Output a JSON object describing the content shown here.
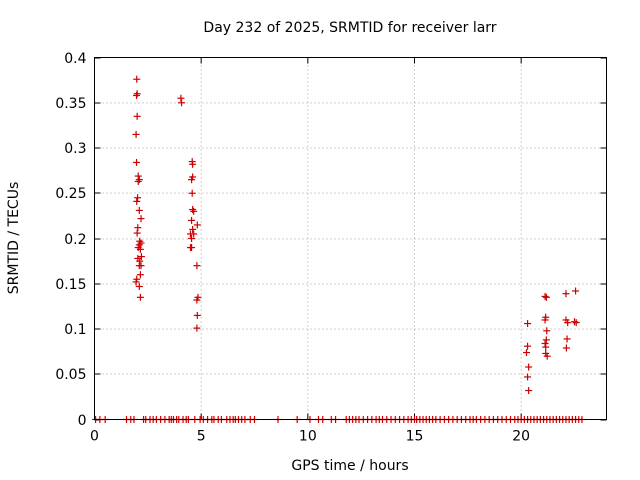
{
  "chart_data": {
    "type": "scatter",
    "title": "Day 232 of 2025, SRMTID for receiver larr",
    "xlabel": "GPS time / hours",
    "ylabel": "SRMTID / TECUs",
    "xlim": [
      0,
      24
    ],
    "ylim": [
      0,
      0.4
    ],
    "xticks": [
      0,
      5,
      10,
      15,
      20
    ],
    "yticks": [
      0,
      0.05,
      0.1,
      0.15,
      0.2,
      0.25,
      0.3,
      0.35,
      0.4
    ],
    "xtick_labels": [
      "0",
      "5",
      "10",
      "15",
      "20"
    ],
    "ytick_labels": [
      "0",
      "0.05",
      "0.1",
      "0.15",
      "0.2",
      "0.25",
      "0.3",
      "0.35",
      "0.4"
    ],
    "grid": true,
    "marker": "+",
    "color": "#cc0000",
    "series": [
      {
        "name": "SRMTID",
        "points": [
          [
            1.98,
            0.376
          ],
          [
            1.97,
            0.358
          ],
          [
            2.0,
            0.36
          ],
          [
            2.0,
            0.335
          ],
          [
            1.95,
            0.315
          ],
          [
            1.97,
            0.284
          ],
          [
            2.05,
            0.269
          ],
          [
            2.05,
            0.263
          ],
          [
            2.1,
            0.265
          ],
          [
            2.02,
            0.245
          ],
          [
            1.98,
            0.241
          ],
          [
            2.1,
            0.231
          ],
          [
            2.18,
            0.222
          ],
          [
            2.03,
            0.212
          ],
          [
            2.0,
            0.206
          ],
          [
            2.12,
            0.197
          ],
          [
            2.18,
            0.195
          ],
          [
            2.1,
            0.193
          ],
          [
            2.05,
            0.19
          ],
          [
            2.15,
            0.188
          ],
          [
            2.2,
            0.18
          ],
          [
            2.03,
            0.178
          ],
          [
            2.12,
            0.175
          ],
          [
            2.1,
            0.17
          ],
          [
            2.18,
            0.17
          ],
          [
            2.15,
            0.16
          ],
          [
            1.98,
            0.155
          ],
          [
            1.95,
            0.152
          ],
          [
            2.1,
            0.147
          ],
          [
            2.15,
            0.135
          ],
          [
            4.05,
            0.355
          ],
          [
            4.08,
            0.35
          ],
          [
            4.58,
            0.285
          ],
          [
            4.6,
            0.282
          ],
          [
            4.6,
            0.268
          ],
          [
            4.55,
            0.265
          ],
          [
            4.58,
            0.25
          ],
          [
            4.6,
            0.232
          ],
          [
            4.65,
            0.23
          ],
          [
            4.55,
            0.22
          ],
          [
            4.82,
            0.215
          ],
          [
            4.6,
            0.21
          ],
          [
            4.65,
            0.205
          ],
          [
            4.5,
            0.205
          ],
          [
            4.55,
            0.2
          ],
          [
            4.5,
            0.19
          ],
          [
            4.55,
            0.19
          ],
          [
            4.8,
            0.17
          ],
          [
            4.85,
            0.135
          ],
          [
            4.8,
            0.132
          ],
          [
            4.82,
            0.115
          ],
          [
            4.8,
            0.101
          ],
          [
            20.3,
            0.106
          ],
          [
            20.3,
            0.081
          ],
          [
            20.25,
            0.074
          ],
          [
            20.35,
            0.058
          ],
          [
            20.3,
            0.047
          ],
          [
            20.35,
            0.032
          ],
          [
            21.12,
            0.136
          ],
          [
            21.18,
            0.135
          ],
          [
            21.15,
            0.113
          ],
          [
            21.12,
            0.11
          ],
          [
            21.2,
            0.098
          ],
          [
            21.18,
            0.088
          ],
          [
            21.12,
            0.084
          ],
          [
            21.15,
            0.08
          ],
          [
            21.15,
            0.073
          ],
          [
            21.22,
            0.07
          ],
          [
            22.1,
            0.139
          ],
          [
            22.1,
            0.11
          ],
          [
            22.18,
            0.107
          ],
          [
            22.15,
            0.089
          ],
          [
            22.12,
            0.079
          ],
          [
            22.55,
            0.142
          ],
          [
            22.5,
            0.108
          ],
          [
            22.58,
            0.107
          ],
          [
            0.05,
            0
          ],
          [
            0.25,
            0
          ],
          [
            0.5,
            0
          ],
          [
            1.5,
            0
          ],
          [
            1.7,
            0
          ],
          [
            1.85,
            0
          ],
          [
            2.3,
            0
          ],
          [
            2.4,
            0
          ],
          [
            2.6,
            0
          ],
          [
            2.75,
            0
          ],
          [
            2.9,
            0
          ],
          [
            3.1,
            0
          ],
          [
            3.3,
            0
          ],
          [
            3.5,
            0
          ],
          [
            3.6,
            0
          ],
          [
            3.7,
            0
          ],
          [
            3.85,
            0
          ],
          [
            3.95,
            0
          ],
          [
            4.15,
            0
          ],
          [
            4.3,
            0
          ],
          [
            4.4,
            0
          ],
          [
            4.7,
            0
          ],
          [
            4.95,
            0
          ],
          [
            5.1,
            0
          ],
          [
            5.3,
            0
          ],
          [
            5.5,
            0
          ],
          [
            5.6,
            0
          ],
          [
            5.8,
            0
          ],
          [
            5.95,
            0
          ],
          [
            6.2,
            0
          ],
          [
            6.35,
            0
          ],
          [
            6.5,
            0
          ],
          [
            6.6,
            0
          ],
          [
            6.75,
            0
          ],
          [
            6.9,
            0
          ],
          [
            7.05,
            0
          ],
          [
            7.3,
            0
          ],
          [
            7.5,
            0
          ],
          [
            8.6,
            0
          ],
          [
            9.5,
            0
          ],
          [
            10.1,
            0
          ],
          [
            10.5,
            0
          ],
          [
            10.7,
            0
          ],
          [
            11.1,
            0
          ],
          [
            11.3,
            0
          ],
          [
            11.8,
            0
          ],
          [
            11.95,
            0
          ],
          [
            12.1,
            0
          ],
          [
            12.25,
            0
          ],
          [
            12.4,
            0
          ],
          [
            12.6,
            0
          ],
          [
            12.8,
            0
          ],
          [
            13.0,
            0
          ],
          [
            13.2,
            0
          ],
          [
            13.35,
            0
          ],
          [
            13.5,
            0
          ],
          [
            13.7,
            0
          ],
          [
            13.9,
            0
          ],
          [
            14.1,
            0
          ],
          [
            14.3,
            0
          ],
          [
            14.5,
            0
          ],
          [
            14.7,
            0
          ],
          [
            14.85,
            0
          ],
          [
            15.0,
            0
          ],
          [
            15.1,
            0
          ],
          [
            15.25,
            0
          ],
          [
            15.4,
            0
          ],
          [
            15.55,
            0
          ],
          [
            15.7,
            0
          ],
          [
            15.85,
            0
          ],
          [
            16.0,
            0
          ],
          [
            16.2,
            0
          ],
          [
            16.4,
            0
          ],
          [
            16.6,
            0
          ],
          [
            16.8,
            0
          ],
          [
            17.0,
            0
          ],
          [
            17.2,
            0
          ],
          [
            17.4,
            0
          ],
          [
            17.6,
            0
          ],
          [
            17.75,
            0
          ],
          [
            17.9,
            0
          ],
          [
            18.1,
            0
          ],
          [
            18.3,
            0
          ],
          [
            18.5,
            0
          ],
          [
            18.7,
            0
          ],
          [
            18.9,
            0
          ],
          [
            19.1,
            0
          ],
          [
            19.3,
            0
          ],
          [
            19.5,
            0
          ],
          [
            19.7,
            0
          ],
          [
            19.85,
            0
          ],
          [
            20.0,
            0
          ],
          [
            20.15,
            0
          ],
          [
            20.3,
            0
          ],
          [
            20.45,
            0
          ],
          [
            20.6,
            0
          ],
          [
            20.75,
            0
          ],
          [
            20.9,
            0
          ],
          [
            21.05,
            0
          ],
          [
            21.2,
            0
          ],
          [
            21.35,
            0
          ],
          [
            21.5,
            0
          ],
          [
            21.65,
            0
          ],
          [
            21.8,
            0
          ],
          [
            21.95,
            0
          ],
          [
            22.1,
            0
          ],
          [
            22.25,
            0
          ],
          [
            22.4,
            0
          ],
          [
            22.55,
            0
          ],
          [
            22.7,
            0
          ],
          [
            22.85,
            0
          ]
        ]
      }
    ]
  }
}
